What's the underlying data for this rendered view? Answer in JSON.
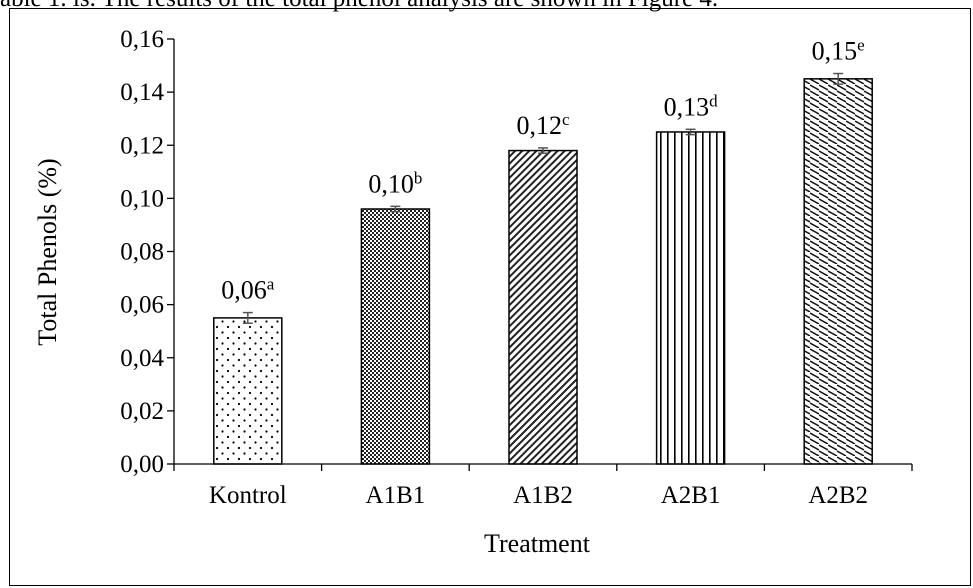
{
  "header_text": "able 1. is. The results of the total phenol analysis are shown in Figure 4.",
  "chart_data": {
    "type": "bar",
    "title": "",
    "xlabel": "Treatment",
    "ylabel": "Total Phenols (%)",
    "ylim": [
      0,
      0.16
    ],
    "yticks": [
      "0,00",
      "0,02",
      "0,04",
      "0,06",
      "0,08",
      "0,10",
      "0,12",
      "0,14",
      "0,16"
    ],
    "grid": false,
    "categories": [
      "Kontrol",
      "A1B1",
      "A1B2",
      "A2B1",
      "A2B2"
    ],
    "values": [
      0.055,
      0.096,
      0.118,
      0.125,
      0.145
    ],
    "errors": [
      0.002,
      0.001,
      0.001,
      0.001,
      0.002
    ],
    "labels": [
      "0,06",
      "0,10",
      "0,12",
      "0,13",
      "0,15"
    ],
    "superscripts": [
      "a",
      "b",
      "c",
      "d",
      "e"
    ],
    "patterns": [
      "dots",
      "crosshatch",
      "diagonal-dense",
      "vertical-lines",
      "zigzag"
    ]
  }
}
